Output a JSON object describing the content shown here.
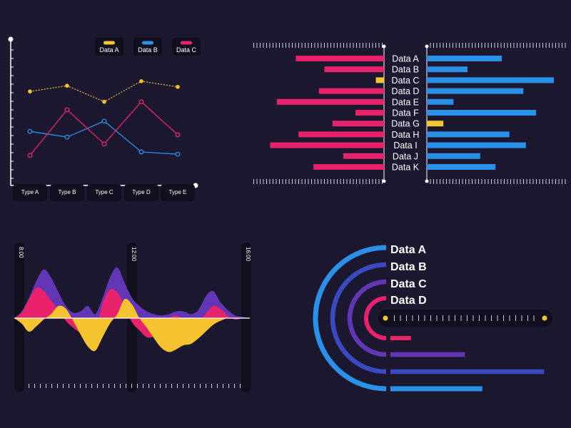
{
  "colors": {
    "background": "#1c1830",
    "panel": "#110f1e",
    "yellow": "#f6c431",
    "blue": "#2a90e8",
    "pink": "#e8236b",
    "purple": "#6236b4",
    "indigo": "#3a4bc0",
    "axis": "#ffffff",
    "text": "#ffffff"
  },
  "chart_data": [
    {
      "type": "line",
      "title": "",
      "legend_position": "top-right",
      "categories": [
        "Type A",
        "Type B",
        "Type C",
        "Type D",
        "Type E"
      ],
      "ylim": [
        0,
        100
      ],
      "series": [
        {
          "name": "Data A",
          "color": "#f6c431",
          "style": "dotted",
          "values": [
            73,
            78,
            64,
            82,
            77
          ]
        },
        {
          "name": "Data B",
          "color": "#2a90e8",
          "style": "solid",
          "values": [
            38,
            33,
            47,
            20,
            18
          ]
        },
        {
          "name": "Data C",
          "color": "#e8236b",
          "style": "solid",
          "values": [
            17,
            57,
            27,
            64,
            35
          ]
        }
      ]
    },
    {
      "type": "bar",
      "orientation": "butterfly",
      "categories": [
        "Data A",
        "Data B",
        "Data C",
        "Data D",
        "Data E",
        "Data F",
        "Data G",
        "Data H",
        "Data I",
        "Data J",
        "Data K"
      ],
      "series": [
        {
          "name": "left",
          "values": [
            65,
            44,
            6,
            48,
            79,
            21,
            38,
            63,
            84,
            30,
            52
          ]
        },
        {
          "name": "right",
          "values": [
            59,
            32,
            100,
            76,
            21,
            86,
            13,
            65,
            78,
            42,
            54
          ]
        }
      ],
      "highlight": {
        "category": "Data G",
        "side": "right",
        "color": "#f6c431"
      },
      "highlight_left": {
        "category": "Data C",
        "color": "#f6c431"
      },
      "xlim": [
        0,
        100
      ]
    },
    {
      "type": "area",
      "x_labels": [
        "8:00",
        "12:00",
        "16:00"
      ],
      "x": [
        0,
        1,
        2,
        3,
        4,
        5,
        6,
        7,
        8,
        9,
        10,
        11,
        12,
        13,
        14,
        15,
        16,
        17,
        18,
        19,
        20,
        21,
        22,
        23,
        24,
        25,
        26,
        27,
        28,
        29,
        30,
        31,
        32
      ],
      "series": [
        {
          "name": "purple",
          "color": "#6236b4",
          "values": [
            0,
            10,
            30,
            55,
            72,
            60,
            38,
            18,
            8,
            10,
            18,
            6,
            30,
            60,
            75,
            52,
            30,
            18,
            10,
            6,
            4,
            6,
            10,
            10,
            6,
            12,
            32,
            40,
            24,
            12,
            4,
            2,
            0
          ]
        },
        {
          "name": "pink",
          "color": "#e8236b",
          "values": [
            0,
            8,
            28,
            45,
            40,
            26,
            12,
            -4,
            -14,
            -22,
            -28,
            -24,
            22,
            42,
            38,
            18,
            -6,
            -18,
            -28,
            -26,
            -10,
            0,
            4,
            -2,
            -8,
            -4,
            6,
            18,
            14,
            4,
            -2,
            0,
            0
          ]
        },
        {
          "name": "yellow",
          "color": "#f6c431",
          "values": [
            0,
            -8,
            -20,
            -12,
            -2,
            6,
            18,
            14,
            -4,
            -24,
            -42,
            -48,
            -28,
            -8,
            6,
            28,
            20,
            0,
            -14,
            -30,
            -44,
            -50,
            -46,
            -40,
            -38,
            -30,
            -20,
            -10,
            -4,
            0,
            0,
            0,
            0
          ]
        }
      ]
    },
    {
      "type": "bar",
      "orientation": "horizontal-radial",
      "categories": [
        "Data A",
        "Data B",
        "Data C",
        "Data D"
      ],
      "values": [
        58,
        97,
        47,
        13
      ],
      "colors": [
        "#2a90e8",
        "#3a4bc0",
        "#6236b4",
        "#e8236b"
      ],
      "xlim": [
        0,
        100
      ]
    }
  ]
}
